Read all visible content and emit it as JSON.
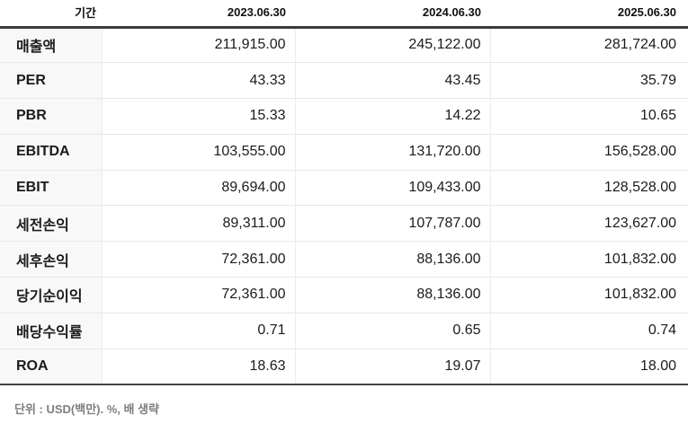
{
  "table": {
    "period_label": "기간",
    "columns": [
      "2023.06.30",
      "2024.06.30",
      "2025.06.30"
    ],
    "rows": [
      {
        "label": "매출액",
        "values": [
          "211,915.00",
          "245,122.00",
          "281,724.00"
        ]
      },
      {
        "label": "PER",
        "values": [
          "43.33",
          "43.45",
          "35.79"
        ]
      },
      {
        "label": "PBR",
        "values": [
          "15.33",
          "14.22",
          "10.65"
        ]
      },
      {
        "label": "EBITDA",
        "values": [
          "103,555.00",
          "131,720.00",
          "156,528.00"
        ]
      },
      {
        "label": "EBIT",
        "values": [
          "89,694.00",
          "109,433.00",
          "128,528.00"
        ]
      },
      {
        "label": "세전손익",
        "values": [
          "89,311.00",
          "107,787.00",
          "123,627.00"
        ]
      },
      {
        "label": "세후손익",
        "values": [
          "72,361.00",
          "88,136.00",
          "101,832.00"
        ]
      },
      {
        "label": "당기순이익",
        "values": [
          "72,361.00",
          "88,136.00",
          "101,832.00"
        ]
      },
      {
        "label": "배당수익률",
        "values": [
          "0.71",
          "0.65",
          "0.74"
        ]
      },
      {
        "label": "ROA",
        "values": [
          "18.63",
          "19.07",
          "18.00"
        ]
      }
    ],
    "footnote": "단위 : USD(백만). %, 배 생략"
  },
  "colors": {
    "header_border": "#3b3b3b",
    "bottom_border": "#424242",
    "row_divider": "#e7e7e7",
    "column_divider": "#ececec",
    "label_column_bg": "#f8f8f8",
    "text": "#1b1b1b",
    "footnote_text": "#7e7e7e"
  }
}
